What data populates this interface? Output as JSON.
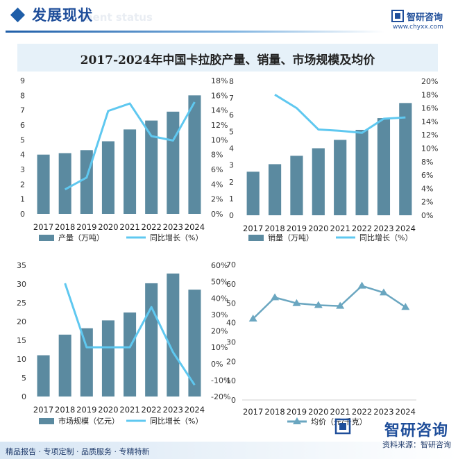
{
  "header": {
    "title": "发展现状",
    "subtitle_en": "ment status",
    "brand_name": "智研咨询",
    "brand_url": "www.chyxx.com"
  },
  "banner": {
    "title": "2017-2024年中国卡拉胶产量、销量、市场规模及均价"
  },
  "colors": {
    "bar": "#5b8aa0",
    "line": "#5fc8f0",
    "avg_line": "#6aa6c0",
    "brand": "#1f4e9a"
  },
  "chart_data": [
    {
      "type": "bar+line",
      "categories": [
        "2017",
        "2018",
        "2019",
        "2020",
        "2021",
        "2022",
        "2023",
        "2024"
      ],
      "series": [
        {
          "name": "产量（万吨）",
          "type": "bar",
          "axis": "left",
          "values": [
            4.0,
            4.1,
            4.3,
            4.9,
            5.7,
            6.3,
            6.9,
            8.0
          ]
        },
        {
          "name": "同比增长（%）",
          "type": "line",
          "axis": "right",
          "values": [
            null,
            3.3,
            4.9,
            13.9,
            14.9,
            10.5,
            9.9,
            15.1
          ]
        }
      ],
      "y_left": {
        "ylim": [
          0,
          9
        ],
        "ticks": [
          "0",
          "1",
          "2",
          "3",
          "4",
          "5",
          "6",
          "7",
          "8",
          "9"
        ]
      },
      "y_right": {
        "ylim": [
          0,
          18
        ],
        "ticks": [
          "0%",
          "2%",
          "4%",
          "6%",
          "8%",
          "10%",
          "12%",
          "14%",
          "16%",
          "18%"
        ]
      }
    },
    {
      "type": "bar+line",
      "categories": [
        "2017",
        "2018",
        "2019",
        "2020",
        "2021",
        "2022",
        "2023",
        "2024"
      ],
      "series": [
        {
          "name": "销量（万吨）",
          "type": "bar",
          "axis": "left",
          "values": [
            2.6,
            3.05,
            3.55,
            4.0,
            4.5,
            5.1,
            5.8,
            6.7
          ]
        },
        {
          "name": "同比增长（%）",
          "type": "line",
          "axis": "right",
          "values": [
            null,
            18.0,
            16.0,
            12.8,
            12.6,
            12.3,
            14.4,
            14.6
          ]
        }
      ],
      "y_left": {
        "ylim": [
          0,
          8
        ],
        "ticks": [
          "0",
          "1",
          "2",
          "3",
          "4",
          "5",
          "6",
          "7",
          "8"
        ]
      },
      "y_right": {
        "ylim": [
          0,
          20
        ],
        "ticks": [
          "0%",
          "2%",
          "4%",
          "6%",
          "8%",
          "10%",
          "12%",
          "14%",
          "16%",
          "18%",
          "20%"
        ]
      }
    },
    {
      "type": "bar+line",
      "categories": [
        "2017",
        "2018",
        "2019",
        "2020",
        "2021",
        "2022",
        "2023",
        "2024"
      ],
      "series": [
        {
          "name": "市场规模（亿元）",
          "type": "bar",
          "axis": "left",
          "values": [
            11.0,
            16.5,
            18.2,
            20.3,
            22.4,
            30.2,
            32.8,
            28.5
          ]
        },
        {
          "name": "同比增长（%）",
          "type": "line",
          "axis": "right",
          "values": [
            null,
            49.0,
            10.0,
            10.0,
            10.0,
            34.5,
            7.0,
            -13.0
          ]
        }
      ],
      "y_left": {
        "ylim": [
          0,
          35
        ],
        "ticks": [
          "0",
          "5",
          "10",
          "15",
          "20",
          "25",
          "30",
          "35"
        ]
      },
      "y_right": {
        "ylim": [
          -20,
          60
        ],
        "ticks": [
          "-20%",
          "-10%",
          "0%",
          "10%",
          "20%",
          "30%",
          "40%",
          "50%",
          "60%"
        ]
      }
    },
    {
      "type": "line",
      "categories": [
        "2017",
        "2018",
        "2019",
        "2020",
        "2021",
        "2022",
        "2023",
        "2024"
      ],
      "series": [
        {
          "name": "均价（元/千克）",
          "type": "line",
          "marker": "triangle",
          "values": [
            42.0,
            53.0,
            50.0,
            49.0,
            48.6,
            59.0,
            55.5,
            48.0
          ]
        }
      ],
      "y_left": {
        "ylim": [
          0,
          70
        ],
        "ticks": [
          "0",
          "10",
          "20",
          "30",
          "40",
          "50",
          "60",
          "70"
        ]
      }
    }
  ],
  "footer": {
    "left": "精品报告 · 专项定制 · 品质服务 · 专精特新",
    "source": "资料来源：智研咨询",
    "brand": "智研咨询"
  }
}
